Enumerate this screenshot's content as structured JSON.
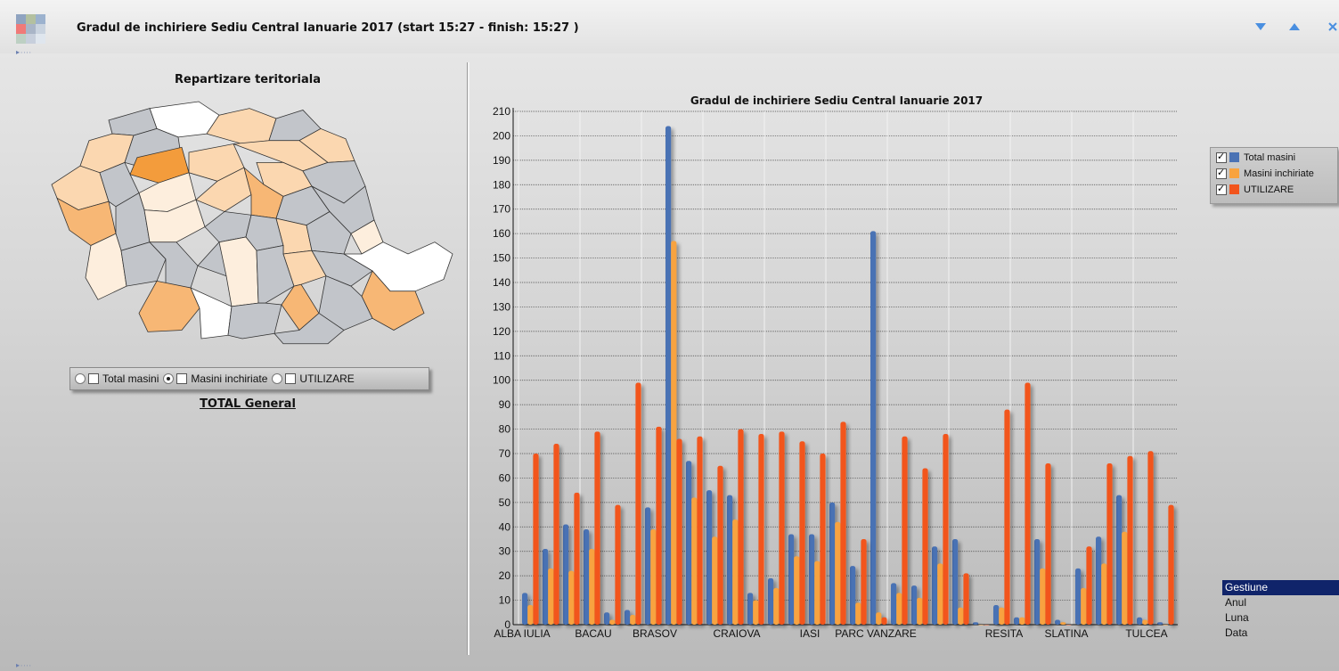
{
  "window": {
    "title": "Gradul de inchiriere  Sediu Central  Ianuarie 2017 (start 15:27 - finish:  15:27 )",
    "buttons": [
      "down-arrow-icon",
      "up-arrow-icon",
      "close-icon"
    ]
  },
  "map_panel": {
    "title": "Repartizare teritoriala",
    "options": [
      {
        "label": "Total masini",
        "selected": false
      },
      {
        "label": "Masini inchiriate",
        "selected": true
      },
      {
        "label": "UTILIZARE",
        "selected": false
      }
    ],
    "total_link": "TOTAL General",
    "colors": {
      "gray": "#c2c5ca",
      "white": "#ffffff",
      "pale": "#fdeedd",
      "light": "#fbd7b0",
      "mid": "#f7b775",
      "dark": "#f39c3c"
    }
  },
  "chart_data": {
    "type": "bar",
    "title": "Gradul de inchiriere  Sediu Central  Ianuarie 2017",
    "ylim": [
      0,
      210
    ],
    "yticks": [
      0,
      10,
      20,
      30,
      40,
      50,
      60,
      70,
      80,
      90,
      100,
      110,
      120,
      130,
      140,
      150,
      160,
      170,
      180,
      190,
      200,
      210
    ],
    "x_labels": [
      "ALBA IULIA",
      "BACAU",
      "BRASOV",
      "CRAIOVA",
      "IASI",
      "PARC VANZARE",
      "RESITA",
      "SLATINA",
      "TULCEA"
    ],
    "grid": true,
    "legend_position": "right",
    "series": [
      {
        "name": "Total masini",
        "color": "#4a72b4",
        "values": [
          13,
          31,
          41,
          39,
          5,
          6,
          48,
          204,
          67,
          55,
          53,
          13,
          19,
          37,
          37,
          50,
          24,
          161,
          17,
          16,
          32,
          35,
          1,
          8,
          3,
          35,
          2,
          23,
          36,
          53,
          3,
          1
        ]
      },
      {
        "name": "Masini inchiriate",
        "color": "#f8a33f",
        "values": [
          8,
          23,
          22,
          31,
          2,
          4,
          39,
          157,
          52,
          36,
          43,
          10,
          15,
          28,
          26,
          42,
          9,
          5,
          13,
          11,
          25,
          7,
          0,
          7,
          3,
          23,
          1,
          15,
          25,
          38,
          2,
          0
        ]
      },
      {
        "name": "UTILIZARE",
        "color": "#f2541c",
        "values": [
          70,
          74,
          54,
          79,
          49,
          99,
          81,
          76,
          77,
          65,
          80,
          78,
          79,
          75,
          70,
          83,
          35,
          3,
          77,
          64,
          78,
          21,
          0,
          88,
          99,
          66,
          0,
          32,
          66,
          69,
          71,
          49
        ]
      }
    ]
  },
  "listbox": {
    "items": [
      "Gestiune",
      "Anul",
      "Luna",
      "Data"
    ],
    "selected_index": 0
  }
}
